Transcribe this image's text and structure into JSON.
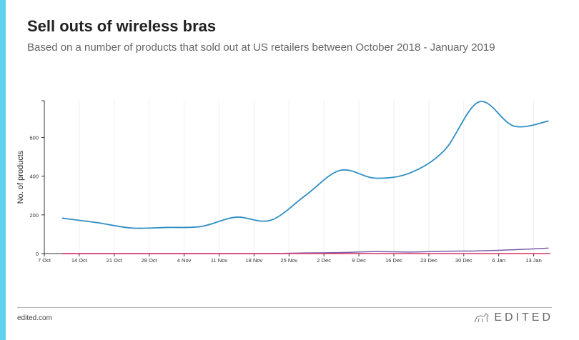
{
  "title": "Sell outs of wireless bras",
  "subtitle": "Based on a number of products that sold out at US retailers between October 2018 - January 2019",
  "footer": {
    "site": "edited.com",
    "logo": "EDITED"
  },
  "chart_data": {
    "type": "line",
    "title": "Sell outs of wireless bras",
    "ylabel": "No. of products",
    "xlabel": "",
    "ylim": [
      0,
      790
    ],
    "yticks": [
      0,
      200,
      400,
      600
    ],
    "xticks": [
      "7 Oct",
      "14 Oct",
      "21 Oct",
      "28 Oct",
      "4 Nov",
      "11 Nov",
      "18 Nov",
      "25 Nov",
      "2 Dec",
      "9 Dec",
      "16 Dec",
      "23 Dec",
      "30 Dec",
      "6 Jan",
      "13 Jan"
    ],
    "grid": "vertical",
    "x": [
      "11 Oct",
      "18 Oct",
      "25 Oct",
      "1 Nov",
      "8 Nov",
      "15 Nov",
      "22 Nov",
      "29 Nov",
      "6 Dec",
      "13 Dec",
      "20 Dec",
      "27 Dec",
      "3 Jan",
      "10 Jan",
      "17 Jan"
    ],
    "series": [
      {
        "color": "#2f8fc4",
        "values": [
          183,
          160,
          132,
          135,
          140,
          188,
          172,
          300,
          430,
          390,
          416,
          533,
          784,
          659,
          685
        ]
      },
      {
        "color": "#7b5ea7",
        "values": [
          0,
          0,
          0,
          0,
          0,
          0,
          0,
          3,
          5,
          10,
          8,
          12,
          14,
          20,
          28
        ]
      },
      {
        "color": "#e0306a",
        "values": [
          0,
          0,
          0,
          0,
          0,
          0,
          0,
          0,
          0,
          0,
          0,
          0,
          0,
          0,
          0
        ]
      }
    ]
  }
}
